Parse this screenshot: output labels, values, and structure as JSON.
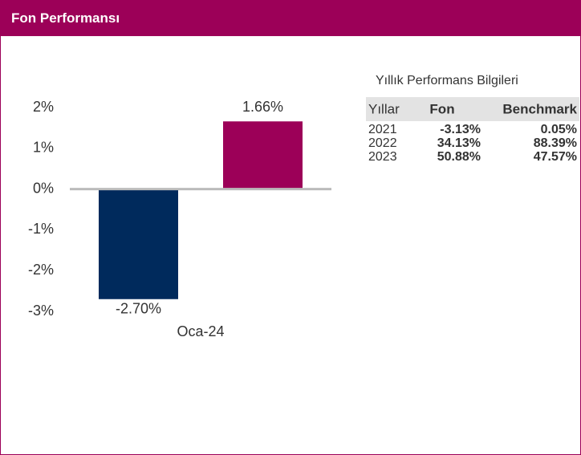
{
  "header": {
    "title": "Fon Performansı"
  },
  "chart_data": {
    "type": "bar",
    "categories": [
      "Oca-24"
    ],
    "series": [
      {
        "color": "#002a5c",
        "values": [
          -2.7
        ],
        "value_labels": [
          "-2.70%"
        ]
      },
      {
        "color": "#9c0058",
        "values": [
          1.66
        ],
        "value_labels": [
          "1.66%"
        ]
      }
    ],
    "ylim": [
      -3,
      2
    ],
    "yticks": [
      {
        "value": 2,
        "label": "2%"
      },
      {
        "value": 1,
        "label": "1%"
      },
      {
        "value": 0,
        "label": "0%"
      },
      {
        "value": -1,
        "label": "-1%"
      },
      {
        "value": -2,
        "label": "-2%"
      },
      {
        "value": -3,
        "label": "-3%"
      }
    ],
    "grid": false
  },
  "table": {
    "title": "Yıllık Performans Bilgileri",
    "columns": [
      "Yıllar",
      "Fon",
      "Benchmark"
    ],
    "rows": [
      [
        "2021",
        "-3.13%",
        "0.05%"
      ],
      [
        "2022",
        "34.13%",
        "88.39%"
      ],
      [
        "2023",
        "50.88%",
        "47.57%"
      ]
    ]
  }
}
